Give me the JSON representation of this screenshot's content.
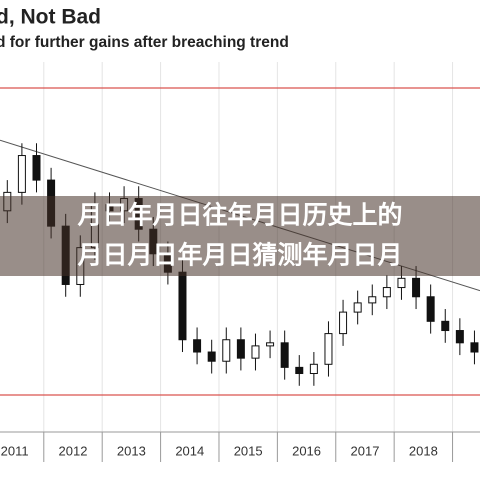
{
  "chart_data": {
    "type": "candlestick",
    "title": "d, Not Bad",
    "subtitle": "d for further gains after breaching trend",
    "overlay_text": [
      "月日年月日往年月日历史上的",
      "月日月日年月日猜测年月日月"
    ],
    "x": [
      2011.375,
      2011.625,
      2011.875,
      2012.125,
      2012.375,
      2012.625,
      2012.875,
      2013.125,
      2013.375,
      2013.625,
      2013.875,
      2014.125,
      2014.375,
      2014.625,
      2014.875,
      2015.125,
      2015.375,
      2015.625,
      2015.875,
      2016.125,
      2016.375,
      2016.625,
      2016.875,
      2017.125,
      2017.375,
      2017.625,
      2017.875,
      2018.125,
      2018.375,
      2018.625,
      2018.875,
      2019.125,
      2019.375
    ],
    "open": [
      60,
      66,
      78,
      70,
      55,
      36,
      48,
      62,
      60,
      64,
      54,
      46,
      40,
      18,
      14,
      11,
      18,
      12,
      16,
      17,
      9,
      7,
      10,
      20,
      27,
      30,
      32,
      35,
      38,
      32,
      24,
      21,
      17
    ],
    "high": [
      70,
      82,
      82,
      74,
      59,
      52,
      66,
      66,
      68,
      68,
      58,
      50,
      44,
      22,
      18,
      22,
      22,
      20,
      21,
      21,
      13,
      14,
      24,
      31,
      34,
      36,
      39,
      42,
      42,
      36,
      28,
      25,
      21
    ],
    "low": [
      56,
      62,
      66,
      51,
      32,
      32,
      44,
      56,
      56,
      50,
      42,
      36,
      14,
      10,
      7,
      7,
      8,
      8,
      12,
      5,
      3,
      3,
      6,
      16,
      23,
      26,
      28,
      31,
      28,
      20,
      17,
      13,
      10
    ],
    "close": [
      66,
      78,
      70,
      55,
      36,
      48,
      62,
      60,
      64,
      54,
      46,
      40,
      18,
      14,
      11,
      18,
      12,
      16,
      17,
      9,
      7,
      10,
      20,
      27,
      30,
      32,
      35,
      38,
      32,
      24,
      21,
      17,
      14
    ],
    "trendline": [
      83,
      34
    ],
    "xlim": [
      2011.25,
      2019.47
    ],
    "ylim": [
      0,
      100
    ],
    "xticks": [
      {
        "value": 2011.5,
        "label": "2011"
      },
      {
        "value": 2012.5,
        "label": "2012"
      },
      {
        "value": 2013.5,
        "label": "2013"
      },
      {
        "value": 2014.5,
        "label": "2014"
      },
      {
        "value": 2015.5,
        "label": "2015"
      },
      {
        "value": 2016.5,
        "label": "2016"
      },
      {
        "value": 2017.5,
        "label": "2017"
      },
      {
        "value": 2018.5,
        "label": "2018"
      }
    ],
    "year_marks": [
      2012,
      2013,
      2014,
      2015,
      2016,
      2017,
      2018,
      2019
    ],
    "grid": true
  }
}
